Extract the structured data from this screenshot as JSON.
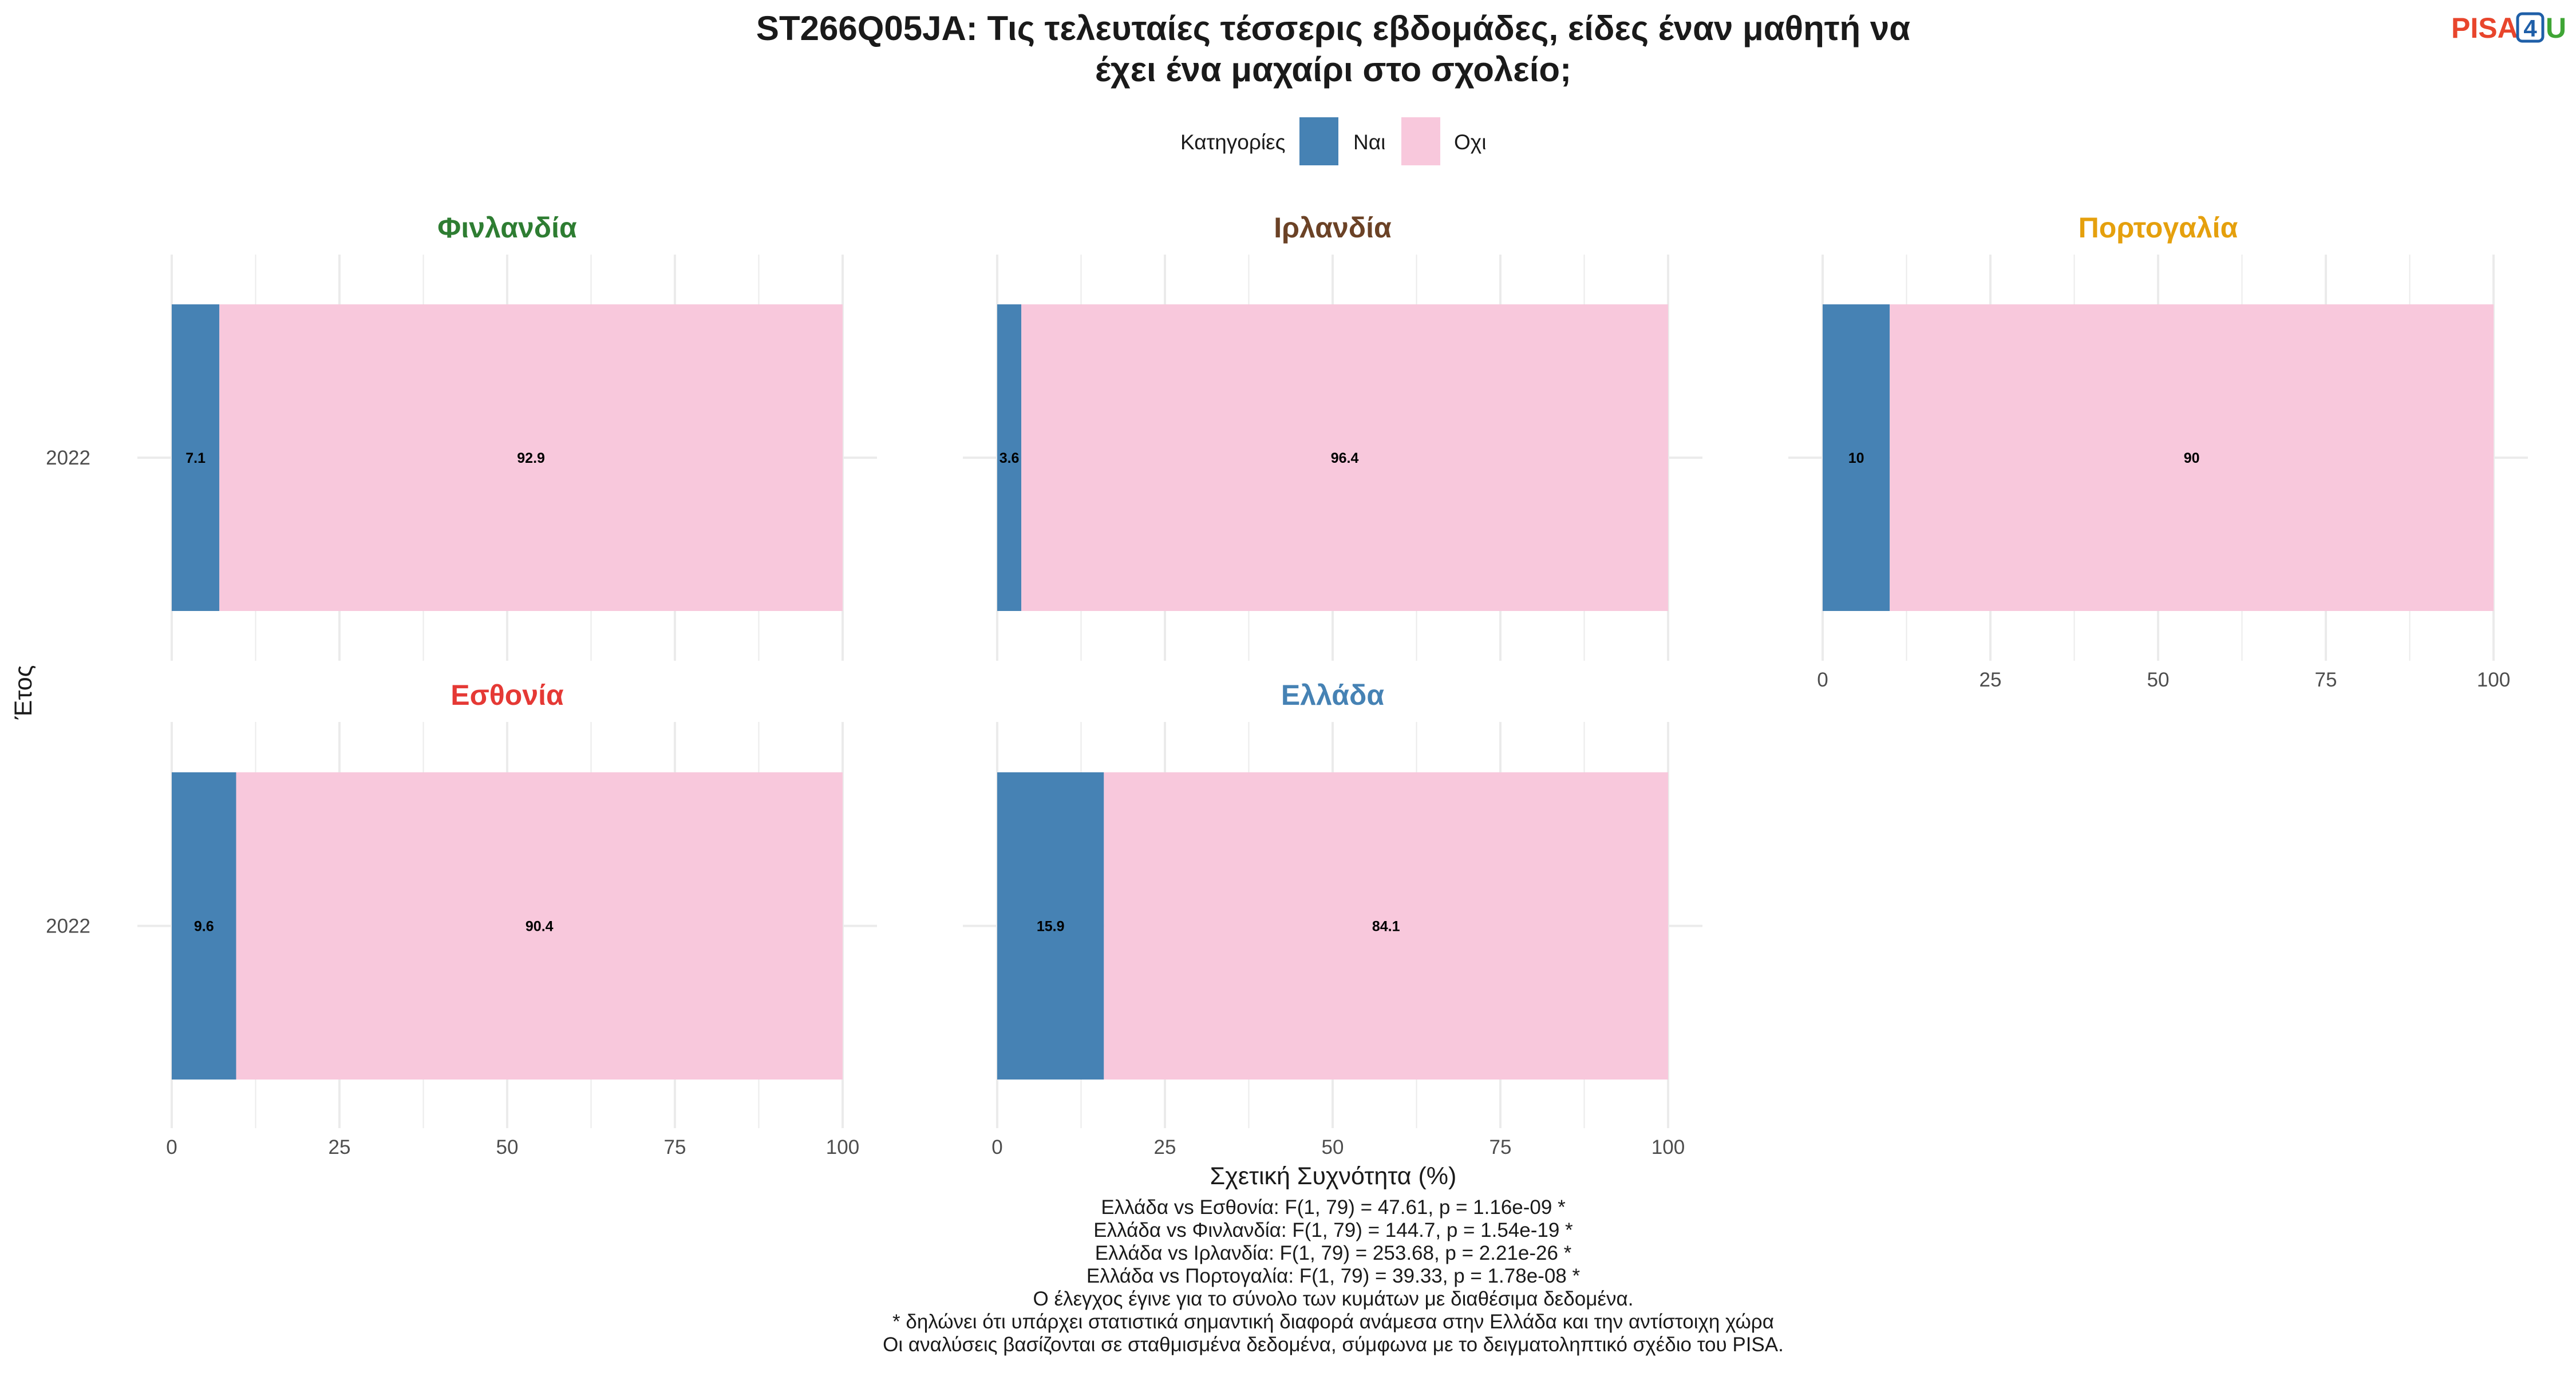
{
  "chart_data": {
    "type": "bar",
    "orientation": "horizontal",
    "stacked": true,
    "title_lines": [
      "ST266Q05JA: Τις τελευταίες τέσσερις εβδομάδες, είδες έναν μαθητή να",
      "έχει ένα μαχαίρι στο σχολείο;"
    ],
    "legend": {
      "title": "Κατηγορίες",
      "position": "top",
      "items": [
        {
          "label": "Ναι",
          "color": "#4682B4"
        },
        {
          "label": "Οχι",
          "color": "#F8C8DC"
        }
      ]
    },
    "xlabel": "Σχετική Συχνότητα (%)",
    "ylabel": "Έτος",
    "xlim": [
      0,
      100
    ],
    "xticks": [
      0,
      25,
      50,
      75,
      100
    ],
    "grid": true,
    "facets": [
      {
        "name": "Φινλανδία",
        "color": "#2E7D32",
        "year": "2022",
        "values": [
          7.1,
          92.9
        ],
        "labels": [
          "7.1",
          "92.9"
        ]
      },
      {
        "name": "Ιρλανδία",
        "color": "#6B4226",
        "year": "2022",
        "values": [
          3.6,
          96.4
        ],
        "labels": [
          "3.6",
          "96.4"
        ]
      },
      {
        "name": "Πορτογαλία",
        "color": "#E5A00D",
        "year": "2022",
        "values": [
          10,
          90
        ],
        "labels": [
          "10",
          "90"
        ]
      },
      {
        "name": "Εσθονία",
        "color": "#E53935",
        "year": "2022",
        "values": [
          9.6,
          90.4
        ],
        "labels": [
          "9.6",
          "90.4"
        ]
      },
      {
        "name": "Ελλάδα",
        "color": "#4682B4",
        "year": "2022",
        "values": [
          15.9,
          84.1
        ],
        "labels": [
          "15.9",
          "84.1"
        ]
      }
    ],
    "caption_lines": [
      "Ελλάδα vs Εσθονία: F(1, 79) = 47.61, p = 1.16e-09 *",
      "Ελλάδα vs Φινλανδία: F(1, 79) = 144.7, p = 1.54e-19 *",
      "Ελλάδα vs Ιρλανδία: F(1, 79) = 253.68, p = 2.21e-26 *",
      "Ελλάδα vs Πορτογαλία: F(1, 79) = 39.33, p = 1.78e-08 *",
      "Ο έλεγχος έγινε για το σύνολο των κυμάτων με διαθέσιμα δεδομένα.",
      "* δηλώνει ότι υπάρχει στατιστικά σημαντική διαφορά ανάμεσα στην Ελλάδα και την αντίστοιχη χώρα",
      "Οι αναλύσεις βασίζονται σε σταθμισμένα δεδομένα, σύμφωνα με το δειγματοληπτικό σχέδιο του PISA."
    ]
  },
  "logo": {
    "text_a": "PISA",
    "text_b": "4",
    "text_c": "U",
    "color_a": "#E8452C",
    "color_b": "#1F5FA8",
    "color_c": "#3FA535"
  }
}
